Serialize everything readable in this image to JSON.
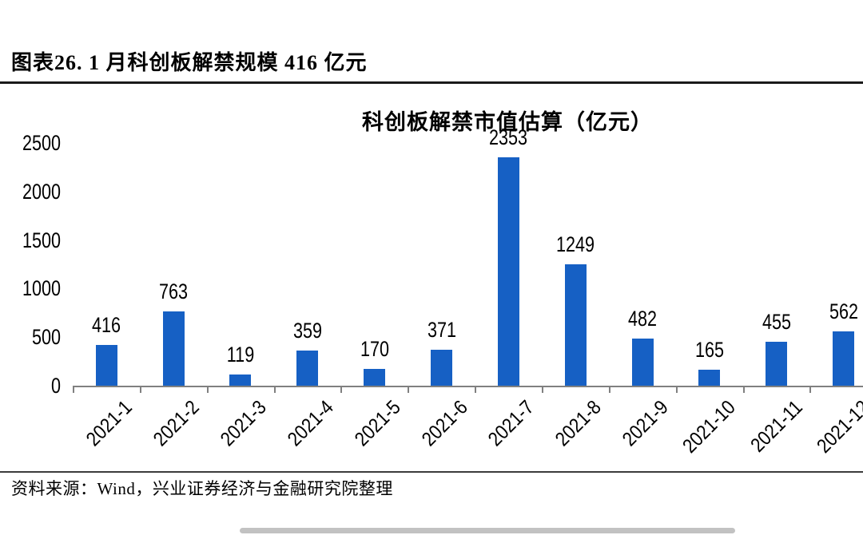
{
  "header": {
    "title": "图表26. 1 月科创板解禁规模 416 亿元"
  },
  "chart_data": {
    "type": "bar",
    "title": "科创板解禁市值估算（亿元）",
    "categories": [
      "2021-1",
      "2021-2",
      "2021-3",
      "2021-4",
      "2021-5",
      "2021-6",
      "2021-7",
      "2021-8",
      "2021-9",
      "2021-10",
      "2021-11",
      "2021-12"
    ],
    "values": [
      416,
      763,
      119,
      359,
      170,
      371,
      2353,
      1249,
      482,
      165,
      455,
      562
    ],
    "y_ticks": [
      0,
      500,
      1000,
      1500,
      2000,
      2500
    ],
    "ylim": [
      0,
      2500
    ],
    "grid": false,
    "legend": "none",
    "value_labels": true,
    "bar_color": "#1660c4",
    "axis_color": "#808080",
    "text_color": "#000000"
  },
  "footer": {
    "source": "资料来源：Wind，兴业证券经济与金融研究院整理"
  }
}
